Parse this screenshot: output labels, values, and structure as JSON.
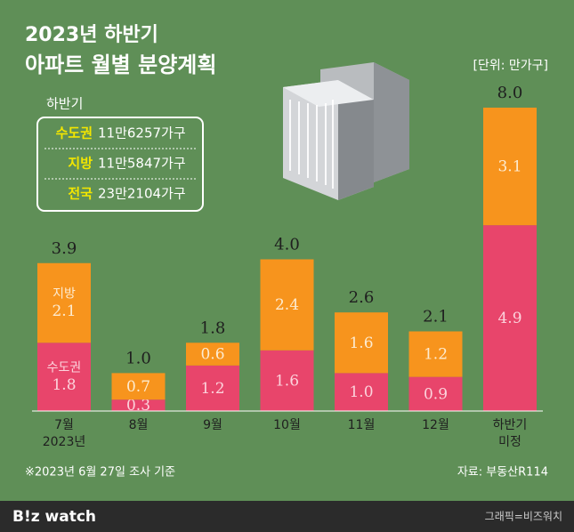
{
  "chart_data": {
    "type": "stacked-bar",
    "title": "2023년 하반기",
    "subtitle": "아파트 월별 분양계획",
    "unit": "[단위: 만가구]",
    "categories": [
      [
        "7월",
        "2023년"
      ],
      [
        "8월"
      ],
      [
        "9월"
      ],
      [
        "10월"
      ],
      [
        "11월"
      ],
      [
        "12월"
      ],
      [
        "하반기",
        "미정"
      ]
    ],
    "series": [
      {
        "name": "수도권",
        "color": "#e8456b",
        "values": [
          1.8,
          0.3,
          1.2,
          1.6,
          1.0,
          0.9,
          4.9
        ],
        "value_labels": [
          "1.8",
          "0.3",
          "1.2",
          "1.6",
          "1.0",
          "0.9",
          "4.9"
        ]
      },
      {
        "name": "지방",
        "color": "#f7941d",
        "values": [
          2.1,
          0.7,
          0.6,
          2.4,
          1.6,
          1.2,
          3.1
        ],
        "value_labels": [
          "2.1",
          "0.7",
          "0.6",
          "2.4",
          "1.6",
          "1.2",
          "3.1"
        ]
      }
    ],
    "totals": [
      3.9,
      1.0,
      1.8,
      4.0,
      2.6,
      2.1,
      8.0
    ],
    "total_labels": [
      "3.9",
      "1.0",
      "1.8",
      "4.0",
      "2.6",
      "2.1",
      "8.0"
    ],
    "summary": {
      "title": "하반기",
      "rows": [
        [
          "수도권",
          "11만6257가구"
        ],
        [
          "지방",
          "11만5847가구"
        ],
        [
          "전국",
          "23만2104가구"
        ]
      ]
    },
    "footnote": "※2023년 6월 27일 조사 기준",
    "source": "자료: 부동산R114",
    "brand": "B!z watch",
    "credit": "그래픽=비즈워치"
  }
}
